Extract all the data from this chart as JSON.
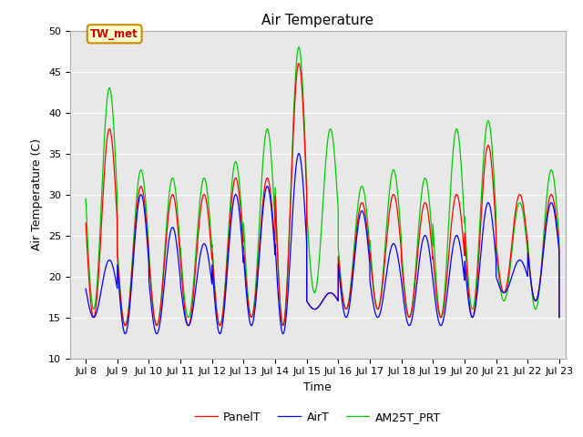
{
  "title": "Air Temperature",
  "xlabel": "Time",
  "ylabel": "Air Temperature (C)",
  "ylim": [
    10,
    50
  ],
  "xlim_days": [
    7.5,
    23.2
  ],
  "xtick_positions": [
    8,
    9,
    10,
    11,
    12,
    13,
    14,
    15,
    16,
    17,
    18,
    19,
    20,
    21,
    22,
    23
  ],
  "xtick_labels": [
    "Jul 8",
    "Jul 9",
    "Jul 10",
    "Jul 11",
    "Jul 12",
    "Jul 13",
    "Jul 14",
    "Jul 15",
    "Jul 16",
    "Jul 17",
    "Jul 18",
    "Jul 19",
    "Jul 20",
    "Jul 21",
    "Jul 22",
    "Jul 23"
  ],
  "legend_labels": [
    "PanelT",
    "AirT",
    "AM25T_PRT"
  ],
  "legend_colors": [
    "#ff0000",
    "#0000ff",
    "#00cc00"
  ],
  "annotation_text": "TW_met",
  "annotation_color": "#cc0000",
  "annotation_bg": "#ffffcc",
  "annotation_border": "#cc8800",
  "fig_bg": "#ffffff",
  "plot_bg": "#e8e8e8",
  "grid_color": "#ffffff",
  "title_fontsize": 11,
  "label_fontsize": 9,
  "tick_fontsize": 8,
  "legend_fontsize": 9,
  "ytick_positions": [
    10,
    15,
    20,
    25,
    30,
    35,
    40,
    45,
    50
  ]
}
